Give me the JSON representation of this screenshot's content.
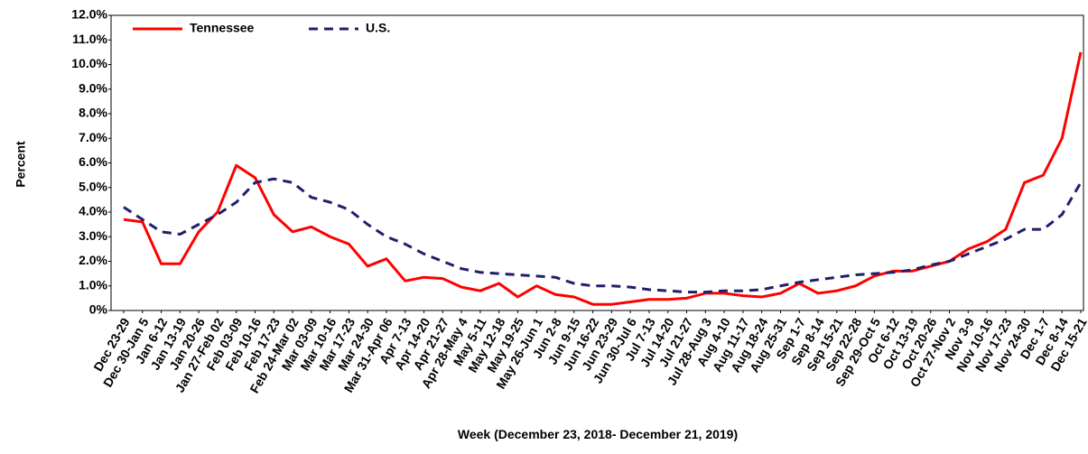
{
  "chart_data": {
    "type": "line",
    "y_label": "Percent",
    "x_label": "Week (December 23, 2018- December 21, 2019)",
    "categories": [
      "Dec 23-29",
      "Dec 30-Jan 5",
      "Jan 6-12",
      "Jan 13-19",
      "Jan 20-26",
      "Jan 27-Feb 02",
      "Feb 03-09",
      "Feb 10-16",
      "Feb 17-23",
      "Feb 24-Mar 02",
      "Mar 03-09",
      "Mar 10-16",
      "Mar 17-23",
      "Mar 24-30",
      "Mar 31-Apr 06",
      "Apr 7-13",
      "Apr 14-20",
      "Apr 21-27",
      "Apr 28-May 4",
      "May 5-11",
      "May 12-18",
      "May 19-25",
      "May 26-Jun 1",
      "Jun 2-8",
      "Jun 9-15",
      "Jun 16-22",
      "Jun 23-29",
      "Jun 30-Jul 6",
      "Jul 7-13",
      "Jul 14-20",
      "Jul 21-27",
      "Jul 28-Aug 3",
      "Aug 4-10",
      "Aug 11-17",
      "Aug 18-24",
      "Aug 25-31",
      "Sep 1-7",
      "Sep 8-14",
      "Sep 15-21",
      "Sep 22-28",
      "Sep 29-Oct 5",
      "Oct 6-12",
      "Oct 13-19",
      "Oct 20-26",
      "Oct 27-Nov 2",
      "Nov 3-9",
      "Nov 10-16",
      "Nov 17-23",
      "Nov 24-30",
      "Dec 1-7",
      "Dec 8-14",
      "Dec 15-21"
    ],
    "series": [
      {
        "name": "Tennessee",
        "color": "#ff0000",
        "dash": false,
        "values": [
          3.7,
          3.6,
          1.9,
          1.9,
          3.2,
          4.0,
          5.9,
          5.4,
          3.9,
          3.2,
          3.4,
          3.0,
          2.7,
          1.8,
          2.1,
          1.2,
          1.35,
          1.3,
          0.95,
          0.8,
          1.1,
          0.55,
          1.0,
          0.65,
          0.55,
          0.25,
          0.25,
          0.35,
          0.45,
          0.45,
          0.5,
          0.7,
          0.7,
          0.6,
          0.55,
          0.7,
          1.1,
          0.7,
          0.8,
          1.0,
          1.4,
          1.6,
          1.6,
          1.8,
          2.0,
          2.5,
          2.8,
          3.3,
          5.2,
          5.5,
          7.0,
          10.5
        ]
      },
      {
        "name": "U.S.",
        "color": "#1f1f6b",
        "dash": true,
        "values": [
          4.2,
          3.7,
          3.2,
          3.1,
          3.5,
          3.9,
          4.4,
          5.2,
          5.35,
          5.2,
          4.6,
          4.4,
          4.1,
          3.5,
          3.0,
          2.7,
          2.3,
          2.0,
          1.7,
          1.55,
          1.5,
          1.45,
          1.4,
          1.35,
          1.1,
          1.0,
          1.0,
          0.95,
          0.85,
          0.8,
          0.75,
          0.75,
          0.8,
          0.8,
          0.85,
          1.0,
          1.15,
          1.25,
          1.35,
          1.45,
          1.5,
          1.55,
          1.65,
          1.85,
          2.0,
          2.3,
          2.6,
          2.9,
          3.3,
          3.3,
          3.9,
          5.2
        ]
      }
    ],
    "ylim": [
      0,
      12
    ],
    "yticks": [
      {
        "value": 0,
        "label": "0%"
      },
      {
        "value": 1,
        "label": "1.0%"
      },
      {
        "value": 2,
        "label": "2.0%"
      },
      {
        "value": 3,
        "label": "3.0%"
      },
      {
        "value": 4,
        "label": "4.0%"
      },
      {
        "value": 5,
        "label": "5.0%"
      },
      {
        "value": 6,
        "label": "6.0%"
      },
      {
        "value": 7,
        "label": "7.0%"
      },
      {
        "value": 8,
        "label": "8.0%"
      },
      {
        "value": 9,
        "label": "9.0%"
      },
      {
        "value": 10,
        "label": "10.0%"
      },
      {
        "value": 11,
        "label": "11.0%"
      },
      {
        "value": 12,
        "label": "12.0%"
      }
    ],
    "grid": false,
    "legend": "top-left"
  }
}
